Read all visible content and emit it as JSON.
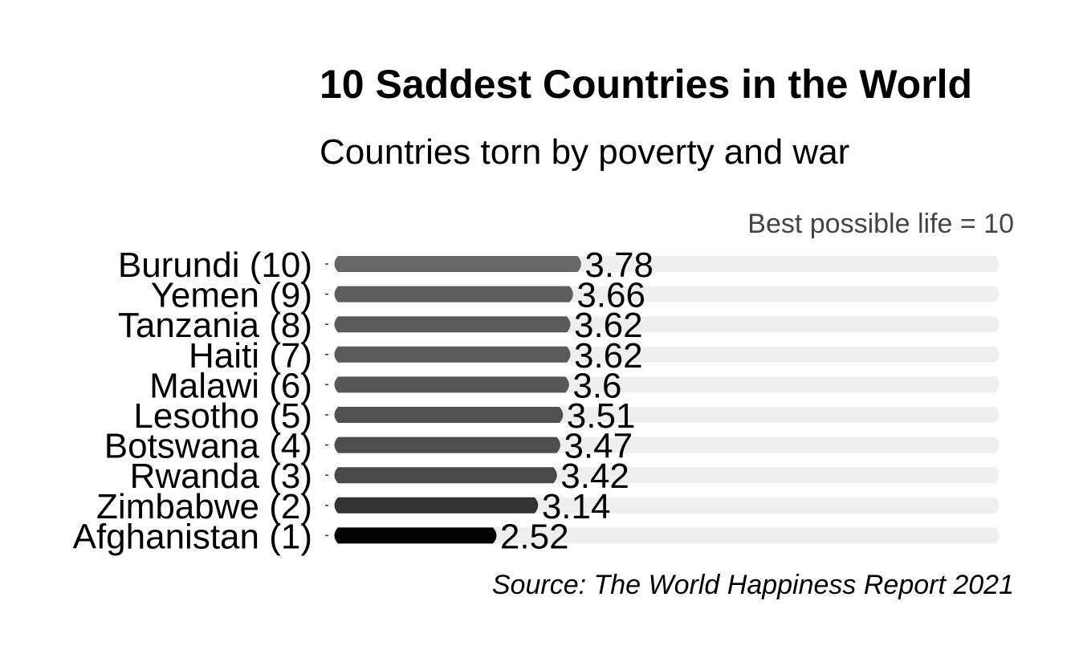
{
  "chart_data": {
    "type": "bar",
    "orientation": "horizontal",
    "title": "10 Saddest Countries in the World",
    "subtitle": "Countries torn by poverty and war",
    "scale_note": "Best possible life = 10",
    "caption": "Source: The World Happiness Report 2021",
    "categories": [
      "Burundi (10)",
      "Yemen (9)",
      "Tanzania (8)",
      "Haiti (7)",
      "Malawi (6)",
      "Lesotho (5)",
      "Botswana (4)",
      "Rwanda (3)",
      "Zimbabwe (2)",
      "Afghanistan (1)"
    ],
    "values": [
      3.78,
      3.66,
      3.62,
      3.62,
      3.6,
      3.51,
      3.47,
      3.42,
      3.14,
      2.52
    ],
    "value_labels": [
      "3.78",
      "3.66",
      "3.62",
      "3.62",
      "3.6",
      "3.51",
      "3.47",
      "3.42",
      "3.14",
      "2.52"
    ],
    "xlim": [
      0,
      10
    ],
    "xlabel": "",
    "ylabel": "",
    "grid": false,
    "legend": "none",
    "colors": {
      "background_track": "#efefef",
      "bar_lightest": "#676767",
      "bar_darkest": "#000000",
      "text": "#000000",
      "note_text": "#444444"
    }
  }
}
